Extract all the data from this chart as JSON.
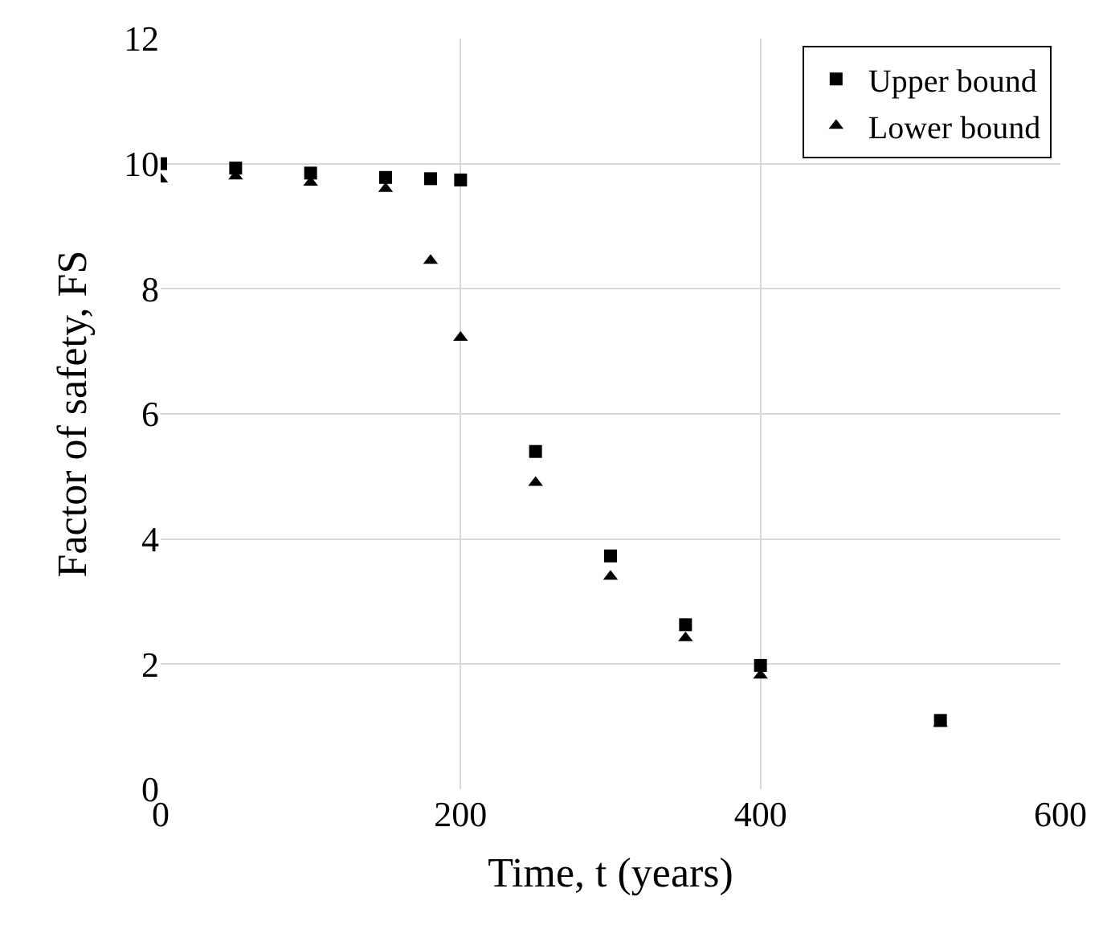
{
  "chart_data": {
    "type": "scatter",
    "xlabel": "Time, t (years)",
    "ylabel": "Factor of safety, FS",
    "x": [
      0,
      50,
      100,
      150,
      180,
      200,
      250,
      300,
      350,
      400,
      520
    ],
    "series": [
      {
        "name": "Upper bound",
        "color": "#000000",
        "marker": "square",
        "values": [
          10,
          9.93,
          9.85,
          9.78,
          9.76,
          9.74,
          5.4,
          3.73,
          2.63,
          1.98,
          1.1
        ]
      },
      {
        "name": "Lower bound",
        "color": "#000000",
        "marker": "triangle",
        "values": [
          9.75,
          9.8,
          9.7,
          9.6,
          8.45,
          7.22,
          4.9,
          3.4,
          2.42,
          1.82,
          1.05
        ]
      }
    ],
    "xlim": [
      0,
      600
    ],
    "xticks": [
      0,
      200,
      400,
      600
    ],
    "ylim": [
      0,
      12
    ],
    "yticks": [
      0,
      2,
      4,
      6,
      8,
      10,
      12
    ],
    "grid": true,
    "legend": "top right"
  }
}
